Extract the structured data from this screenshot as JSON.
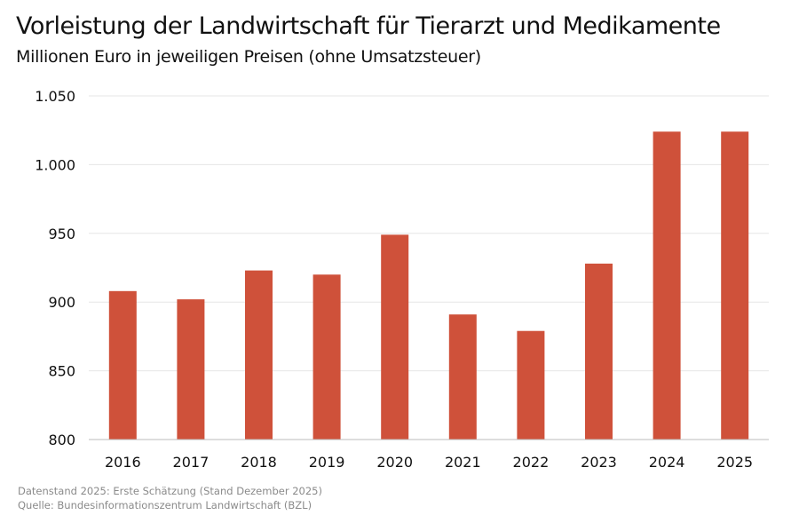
{
  "chart_data": {
    "type": "bar",
    "title": "Vorleistung der Landwirtschaft für Tierarzt und Medikamente",
    "subtitle": "Millionen Euro in jeweiligen Preisen (ohne Umsatzsteuer)",
    "categories": [
      "2016",
      "2017",
      "2018",
      "2019",
      "2020",
      "2021",
      "2022",
      "2023",
      "2024",
      "2025"
    ],
    "values": [
      908,
      902,
      923,
      920,
      949,
      891,
      879,
      928,
      1024,
      1024
    ],
    "ylim": [
      800,
      1050
    ],
    "yticks": [
      800,
      850,
      900,
      950,
      1000,
      1050
    ],
    "ytick_labels": [
      "800",
      "850",
      "900",
      "950",
      "1.000",
      "1.050"
    ],
    "grid": true,
    "bar_color": "#cf513a",
    "xlabel": "",
    "ylabel": ""
  },
  "footnotes": {
    "datenstand": "Datenstand 2025: Erste Schätzung (Stand Dezember 2025)",
    "quelle": "Quelle: Bundesinformationszentrum Landwirtschaft (BZL)"
  }
}
